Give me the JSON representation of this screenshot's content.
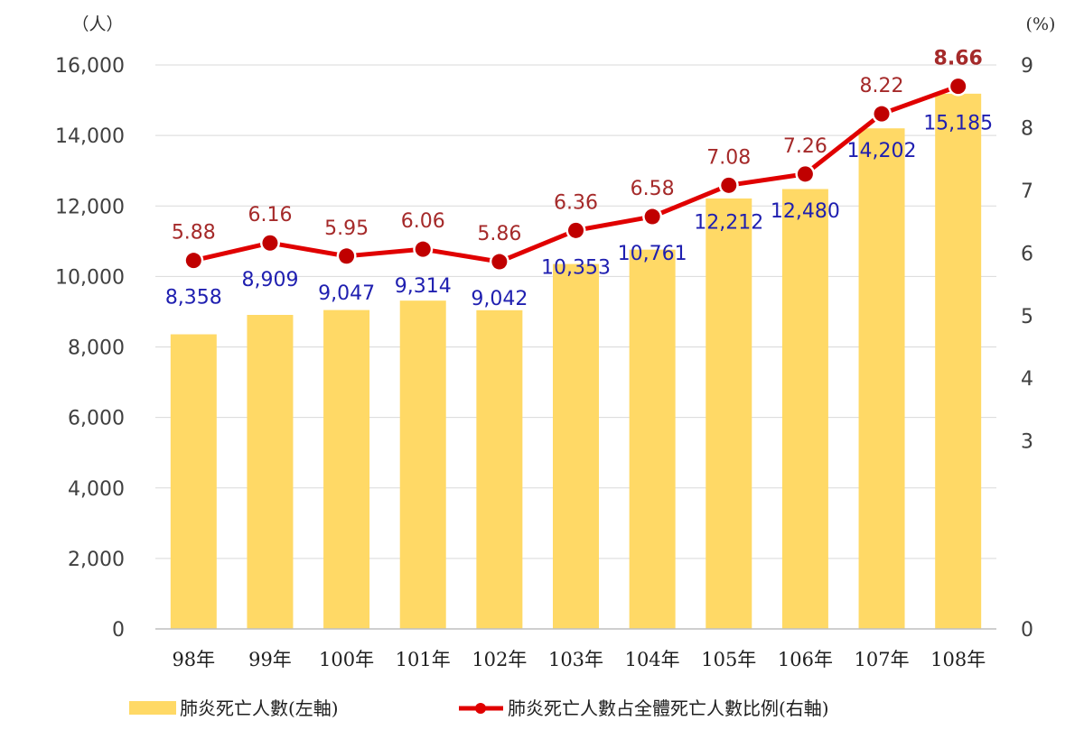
{
  "chart_data": {
    "type": "bar",
    "categories": [
      "98年",
      "99年",
      "100年",
      "101年",
      "102年",
      "103年",
      "104年",
      "105年",
      "106年",
      "107年",
      "108年"
    ],
    "series": [
      {
        "name": "肺炎死亡人數(左軸)",
        "type": "bar",
        "axis": "left",
        "values": [
          8358,
          8909,
          9047,
          9314,
          9042,
          10353,
          10761,
          12212,
          12480,
          14202,
          15185
        ],
        "labels": [
          "8,358",
          "8,909",
          "9,047",
          "9,314",
          "9,042",
          "10,353",
          "10,761",
          "12,212",
          "12,480",
          "14,202",
          "15,185"
        ],
        "color": "#FFD966"
      },
      {
        "name": "肺炎死亡人數占全體死亡人數比例(右軸)",
        "type": "line",
        "axis": "right",
        "values": [
          5.88,
          6.16,
          5.95,
          6.06,
          5.86,
          6.36,
          6.58,
          7.08,
          7.26,
          8.22,
          8.66
        ],
        "labels": [
          "5.88",
          "6.16",
          "5.95",
          "6.06",
          "5.86",
          "6.36",
          "6.58",
          "7.08",
          "7.26",
          "8.22",
          "8.66"
        ],
        "color": "#E00000"
      }
    ],
    "y_left": {
      "unit": "（人）",
      "range": [
        0,
        16000
      ],
      "ticks": [
        "0",
        "2,000",
        "4,000",
        "6,000",
        "8,000",
        "10,000",
        "12,000",
        "14,000",
        "16,000"
      ]
    },
    "y_right": {
      "unit": "(%)",
      "range": [
        0,
        9
      ],
      "ticks": [
        "0",
        "3",
        "4",
        "5",
        "6",
        "7",
        "8",
        "9"
      ],
      "tick_values": [
        0,
        3,
        4,
        5,
        6,
        7,
        8,
        9
      ]
    },
    "grid": true,
    "legend": "bottom",
    "label_colors": {
      "count": "#1f1fb0",
      "percent": "#a52a2a"
    }
  }
}
